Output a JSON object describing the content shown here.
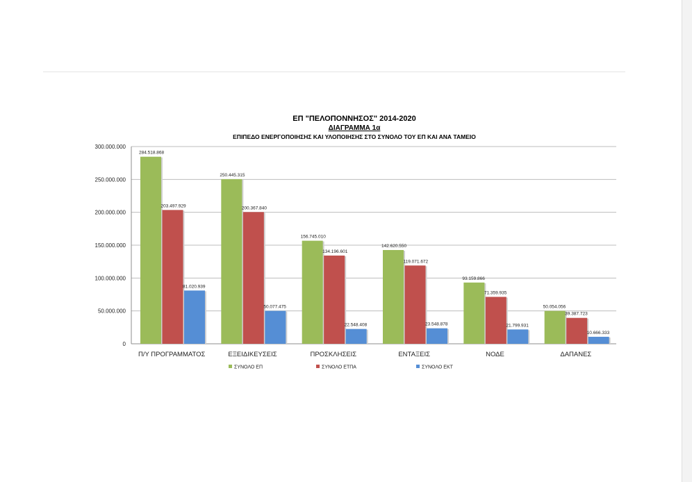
{
  "colors": {
    "ep": "#9bbb59",
    "etpa": "#c0504d",
    "ekt": "#558ed5"
  },
  "chart_data": {
    "type": "bar",
    "title": "ΕΠ \"ΠΕΛΟΠΟΝΝΗΣΟΣ\" 2014-2020",
    "subtitle": "ΔΙΑΓΡΑΜΜΑ 1α",
    "subtitle2": "ΕΠΙΠΕΔΟ ΕΝΕΡΓΟΠΟΙΗΣΗΣ ΚΑΙ ΥΛΟΠΟΙΗΣΗΣ ΣΤΟ ΣΥΝΟΛΟ ΤΟΥ ΕΠ ΚΑΙ ΑΝΑ ΤΑΜΕΙΟ",
    "categories": [
      "Π/Υ ΠΡΟΓΡΑΜΜΑΤΟΣ",
      "ΕΞΕΙΔΙΚΕΥΣΕΙΣ",
      "ΠΡΟΣΚΛΗΣΕΙΣ",
      "ΕΝΤΑΞΕΙΣ",
      "ΝΟΔΕ",
      "ΔΑΠΑΝΕΣ"
    ],
    "series": [
      {
        "name": "ΣΥΝΟΛΟ ΕΠ",
        "color_key": "ep",
        "values": [
          284518868,
          250445315,
          156745010,
          142620550,
          93159866,
          50054056
        ],
        "labels": [
          "284.518.868",
          "250.445.315",
          "156.745.010",
          "142.620.550",
          "93.159.866",
          "50.054.056"
        ]
      },
      {
        "name": "ΣΥΝΟΛΟ ΕΤΠΑ",
        "color_key": "etpa",
        "values": [
          203497929,
          200367840,
          134196601,
          119071672,
          71359935,
          39387723
        ],
        "labels": [
          "203.497.929",
          "200.367.840",
          "134.196.601",
          "119.071.672",
          "71.359.935",
          "39.387.723"
        ]
      },
      {
        "name": "ΣΥΝΟΛΟ ΕΚΤ",
        "color_key": "ekt",
        "values": [
          81020939,
          50077475,
          22548408,
          23548878,
          21799931,
          10666333
        ],
        "labels": [
          "81.020.939",
          "50.077.475",
          "22.548.408",
          "23.548.878",
          "21.799.931",
          "10.666.333"
        ]
      }
    ],
    "ylim": [
      0,
      300000000
    ],
    "yticks": [
      0,
      50000000,
      100000000,
      150000000,
      200000000,
      250000000,
      300000000
    ],
    "ytick_labels": [
      "0",
      "50.000.000",
      "100.000.000",
      "150.000.000",
      "200.000.000",
      "250.000.000",
      "300.000.000"
    ],
    "grid": true,
    "legend": "bottom"
  }
}
